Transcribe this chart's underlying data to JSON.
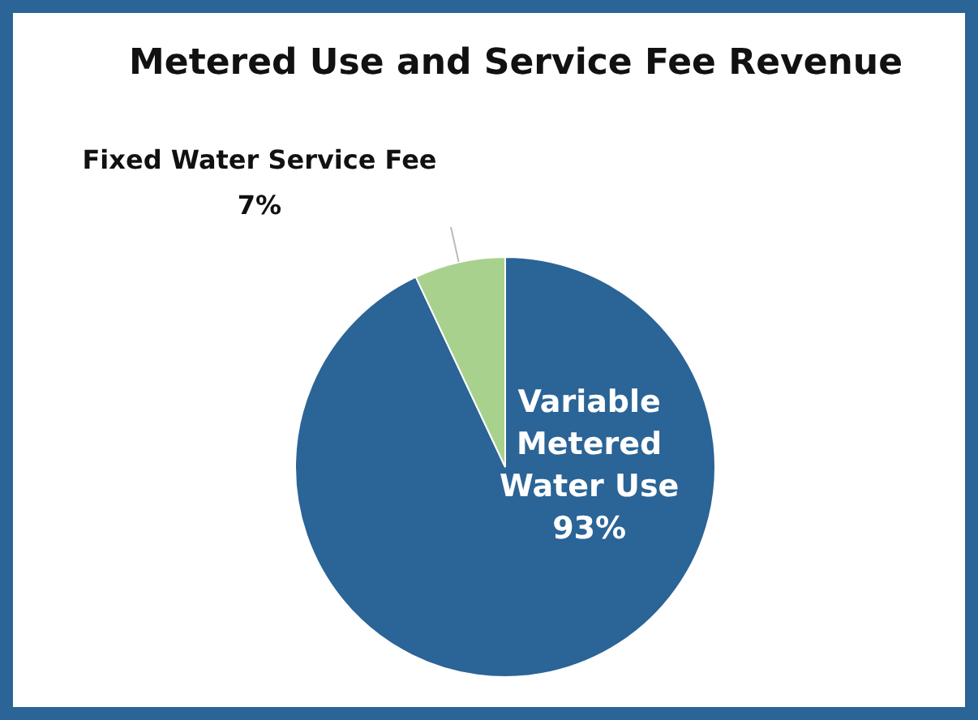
{
  "chart_data": {
    "type": "pie",
    "title": "Metered Use and Service Fee Revenue",
    "categories": [
      "Variable Metered Water Use",
      "Fixed Water Service Fee"
    ],
    "values": [
      93,
      7
    ],
    "colors": [
      "#2b6496",
      "#a9d18e"
    ],
    "value_labels": [
      "93%",
      "7%"
    ],
    "legend": false
  }
}
